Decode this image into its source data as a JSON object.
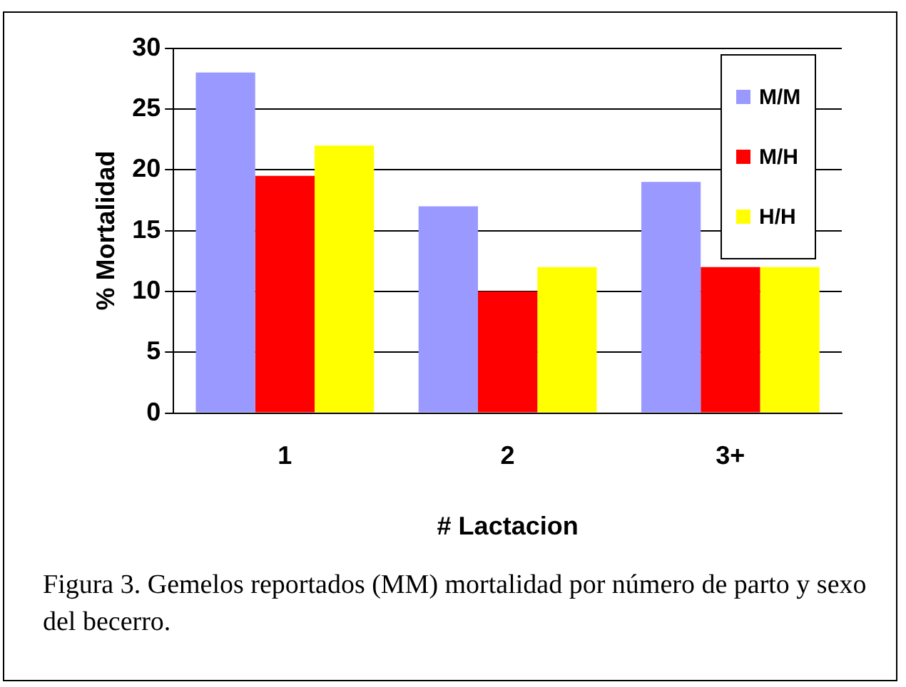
{
  "chart_data": {
    "type": "bar",
    "categories": [
      "1",
      "2",
      "3+"
    ],
    "series": [
      {
        "name": "M/M",
        "color": "#9999ff",
        "values": [
          28,
          17,
          19
        ]
      },
      {
        "name": "M/H",
        "color": "#ff0000",
        "values": [
          19.5,
          10,
          12
        ]
      },
      {
        "name": "H/H",
        "color": "#ffff00",
        "values": [
          22,
          12,
          12
        ]
      }
    ],
    "ylabel": "% Mortalidad",
    "xlabel": "# Lactacion",
    "ylim": [
      0,
      30
    ],
    "yticks": [
      0,
      5,
      10,
      15,
      20,
      25,
      30
    ],
    "grid": "y",
    "legend": "top right",
    "annotations": [
      "Figura 3. Gemelos reportados (MM) mortalidad por número de parto y sexo del becerro."
    ]
  }
}
